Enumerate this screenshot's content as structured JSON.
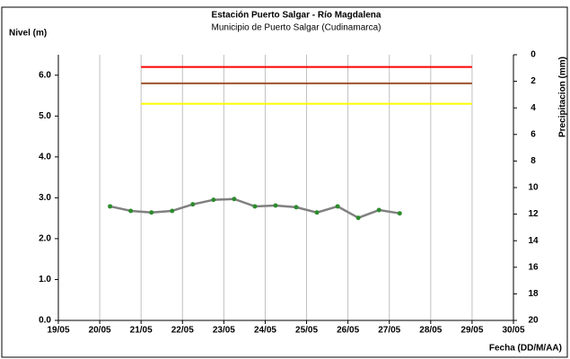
{
  "chart_data": {
    "type": "line",
    "title": "Estación Puerto Salgar - Río Magdalena",
    "subtitle": "Municipio de Puerto Salgar (Cudinamarca)",
    "ylabel": "Nivel (m)",
    "y2label": "Precipitacion (mm)",
    "xlabel": "Fecha (DD/M/AA)",
    "xlim": [
      19,
      30
    ],
    "xticks": [
      {
        "value": 19,
        "label": "19/05"
      },
      {
        "value": 20,
        "label": "20/05"
      },
      {
        "value": 21,
        "label": "21/05"
      },
      {
        "value": 22,
        "label": "22/05"
      },
      {
        "value": 23,
        "label": "23/05"
      },
      {
        "value": 24,
        "label": "24/05"
      },
      {
        "value": 25,
        "label": "25/05"
      },
      {
        "value": 26,
        "label": "26/05"
      },
      {
        "value": 27,
        "label": "27/05"
      },
      {
        "value": 28,
        "label": "28/05"
      },
      {
        "value": 29,
        "label": "29/05"
      },
      {
        "value": 30,
        "label": "30/05"
      }
    ],
    "ylim": [
      0,
      6.5
    ],
    "yticks": [
      {
        "value": 0,
        "label": "0.0"
      },
      {
        "value": 1,
        "label": "1.0"
      },
      {
        "value": 2,
        "label": "2.0"
      },
      {
        "value": 3,
        "label": "3.0"
      },
      {
        "value": 4,
        "label": "4.0"
      },
      {
        "value": 5,
        "label": "5.0"
      },
      {
        "value": 6,
        "label": "6.0"
      }
    ],
    "y2lim": [
      20,
      0
    ],
    "y2ticks": [
      0,
      2,
      4,
      6,
      8,
      10,
      12,
      14,
      16,
      18,
      20
    ],
    "grid": "x",
    "series": [
      {
        "color": "#808080",
        "marker_color": "#2e8b2e",
        "x": [
          20.25,
          20.75,
          21.25,
          21.75,
          22.25,
          22.75,
          23.25,
          23.75,
          24.25,
          24.75,
          25.25,
          25.75,
          26.25,
          26.75,
          27.25
        ],
        "values": [
          2.79,
          2.68,
          2.64,
          2.68,
          2.84,
          2.95,
          2.97,
          2.79,
          2.81,
          2.77,
          2.64,
          2.79,
          2.51,
          2.7,
          2.62
        ]
      }
    ],
    "reference_lines": [
      {
        "value": 6.2,
        "color": "#ff0000",
        "x": [
          21,
          29
        ]
      },
      {
        "value": 5.8,
        "color": "#a0522d",
        "x": [
          21,
          29
        ]
      },
      {
        "value": 5.3,
        "color": "#ffff00",
        "x": [
          21,
          29
        ]
      }
    ]
  }
}
